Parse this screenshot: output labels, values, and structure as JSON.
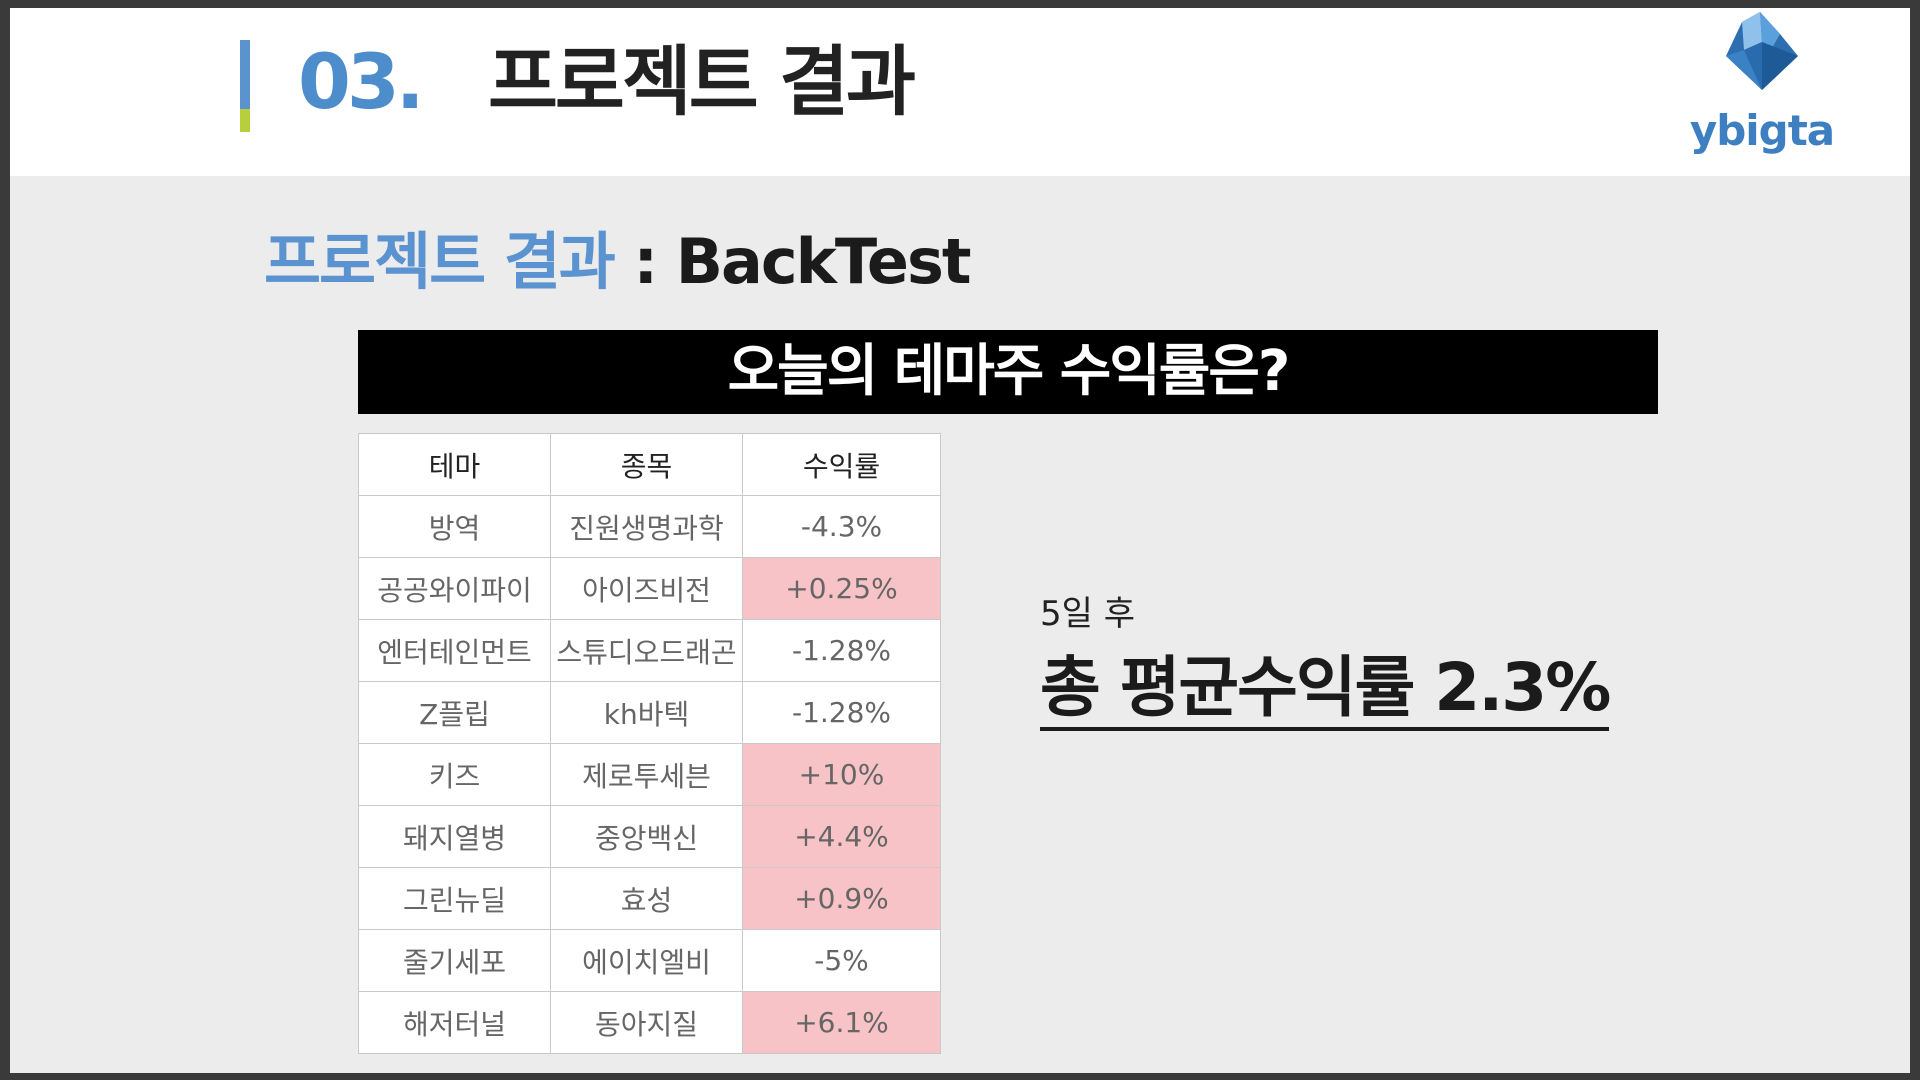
{
  "header": {
    "section_number": "03.",
    "section_title": "프로젝트 결과",
    "logo_text": "ybigta"
  },
  "subtitle": {
    "highlight": "프로젝트 결과",
    "rest": " : BackTest"
  },
  "banner": "오늘의 테마주 수익률은?",
  "table": {
    "headers": [
      "테마",
      "종목",
      "수익률"
    ],
    "rows": [
      {
        "theme": "방역",
        "stock": "진원생명과학",
        "return": "-4.3%",
        "positive": false
      },
      {
        "theme": "공공와이파이",
        "stock": "아이즈비전",
        "return": "+0.25%",
        "positive": true
      },
      {
        "theme": "엔터테인먼트",
        "stock": "스튜디오드래곤",
        "return": "-1.28%",
        "positive": false
      },
      {
        "theme": "Z플립",
        "stock": "kh바텍",
        "return": "-1.28%",
        "positive": false
      },
      {
        "theme": "키즈",
        "stock": "제로투세븐",
        "return": "+10%",
        "positive": true
      },
      {
        "theme": "돼지열병",
        "stock": "중앙백신",
        "return": "+4.4%",
        "positive": true
      },
      {
        "theme": "그린뉴딜",
        "stock": "효성",
        "return": "+0.9%",
        "positive": true
      },
      {
        "theme": "줄기세포",
        "stock": "에이치엘비",
        "return": "-5%",
        "positive": false
      },
      {
        "theme": "해저터널",
        "stock": "동아지질",
        "return": "+6.1%",
        "positive": true
      }
    ]
  },
  "summary": {
    "after_label": "5일 후",
    "average_text": "총 평균수익률 2.3%"
  },
  "colors": {
    "accent_blue": "#5a93cf",
    "positive_cell": "#f7c3c6",
    "banner_bg": "#000000"
  }
}
